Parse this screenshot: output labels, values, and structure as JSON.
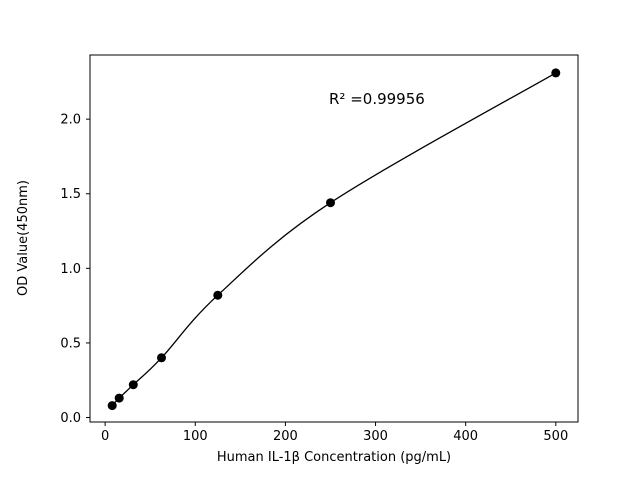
{
  "chart_data": {
    "type": "scatter",
    "title": "",
    "xlabel": "Human IL-1β Concentration (pg/mL)",
    "ylabel": "OD Value(450nm)",
    "annotation": "R² =0.99956",
    "x": [
      7.8,
      15.6,
      31.25,
      62.5,
      125,
      250,
      500
    ],
    "y": [
      0.08,
      0.13,
      0.22,
      0.4,
      0.82,
      1.44,
      2.31
    ],
    "curve_type": "smooth fit through data points",
    "xlim": [
      -16.8,
      524.6
    ],
    "ylim": [
      -0.03,
      2.43
    ],
    "xticks": [
      0,
      100,
      200,
      300,
      400,
      500
    ],
    "yticks": [
      0.0,
      0.5,
      1.0,
      1.5,
      2.0
    ],
    "grid": false,
    "legend": "none",
    "point_color": "#000000",
    "line_color": "#000000",
    "background_color": "#ffffff"
  }
}
